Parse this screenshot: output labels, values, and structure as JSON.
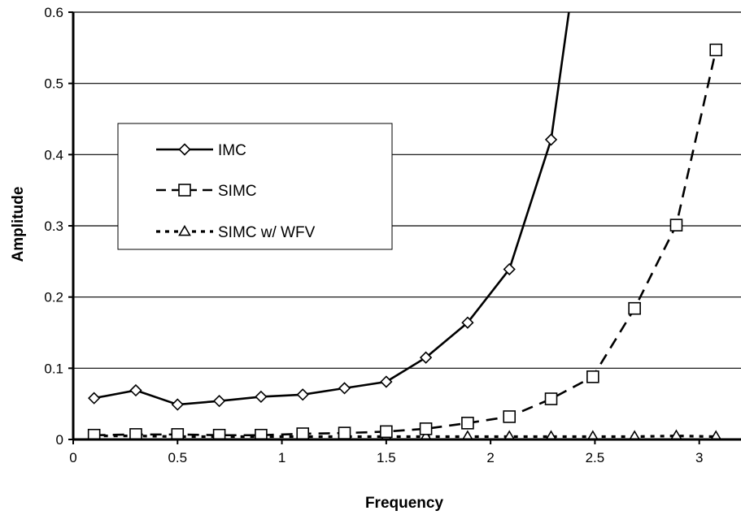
{
  "chart_data": {
    "type": "line",
    "title": "",
    "xlabel": "Frequency",
    "ylabel": "Amplitude",
    "xlim": [
      0,
      3.2
    ],
    "ylim": [
      0,
      0.6
    ],
    "xticks": [
      "0",
      "0.5",
      "1",
      "1.5",
      "2",
      "2.5",
      "3"
    ],
    "xtick_values": [
      0,
      0.5,
      1,
      1.5,
      2,
      2.5,
      3
    ],
    "yticks": [
      "0",
      "0.1",
      "0.2",
      "0.3",
      "0.4",
      "0.5",
      "0.6"
    ],
    "ytick_values": [
      0,
      0.1,
      0.2,
      0.3,
      0.4,
      0.5,
      0.6
    ],
    "grid": "horizontal",
    "legend": "inside-left",
    "series": [
      {
        "name": "IMC",
        "marker": "diamond",
        "line_style": "solid",
        "x": [
          0.1,
          0.3,
          0.5,
          0.7,
          0.9,
          1.1,
          1.3,
          1.5,
          1.69,
          1.89,
          2.09,
          2.29,
          2.38
        ],
        "y": [
          0.058,
          0.069,
          0.049,
          0.054,
          0.06,
          0.063,
          0.072,
          0.081,
          0.115,
          0.164,
          0.239,
          0.421,
          0.61
        ],
        "marker_mask": [
          true,
          true,
          true,
          true,
          true,
          true,
          true,
          true,
          true,
          true,
          true,
          true,
          false
        ]
      },
      {
        "name": "SIMC",
        "marker": "square",
        "line_style": "dashed",
        "x": [
          0.1,
          0.3,
          0.5,
          0.7,
          0.9,
          1.1,
          1.3,
          1.5,
          1.69,
          1.89,
          2.09,
          2.29,
          2.49,
          2.69,
          2.89,
          3.08
        ],
        "y": [
          0.006,
          0.007,
          0.007,
          0.006,
          0.006,
          0.008,
          0.009,
          0.011,
          0.015,
          0.023,
          0.032,
          0.057,
          0.088,
          0.184,
          0.301,
          0.547
        ],
        "marker_mask": [
          true,
          true,
          true,
          true,
          true,
          true,
          true,
          true,
          true,
          true,
          true,
          true,
          true,
          true,
          true,
          true
        ]
      },
      {
        "name": "SIMC w/ WFV",
        "marker": "triangle",
        "line_style": "dotted",
        "x": [
          0.1,
          0.3,
          0.5,
          0.7,
          0.9,
          1.1,
          1.3,
          1.5,
          1.69,
          1.89,
          2.09,
          2.29,
          2.49,
          2.69,
          2.89,
          3.08
        ],
        "y": [
          0.005,
          0.005,
          0.004,
          0.004,
          0.004,
          0.004,
          0.004,
          0.004,
          0.004,
          0.004,
          0.004,
          0.004,
          0.004,
          0.004,
          0.005,
          0.004
        ],
        "marker_mask": [
          true,
          true,
          true,
          true,
          true,
          true,
          true,
          true,
          true,
          true,
          true,
          true,
          true,
          true,
          true,
          true
        ]
      }
    ]
  }
}
